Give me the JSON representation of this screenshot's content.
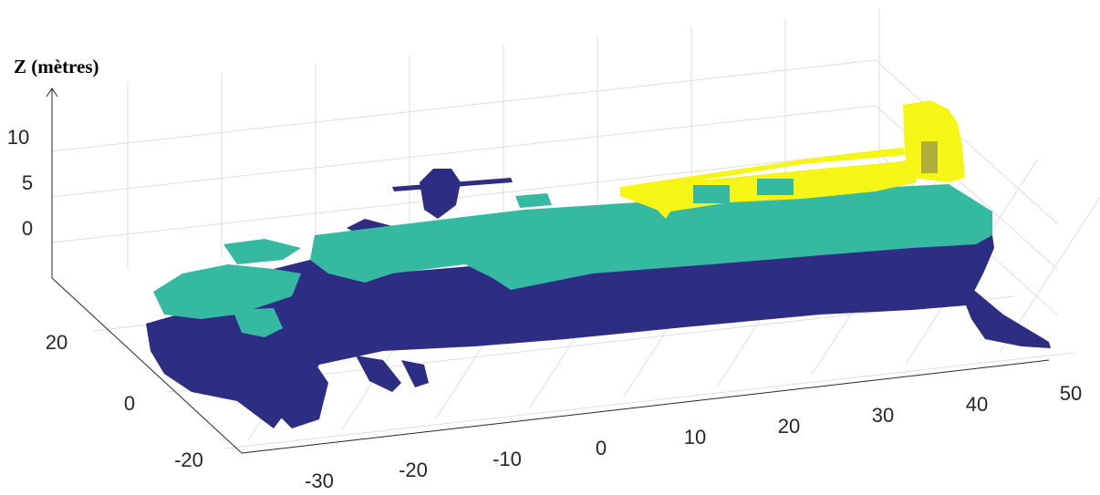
{
  "chart_data": {
    "type": "scatter",
    "projection": "3d-point-cloud",
    "zlabel": "Z (mètres)",
    "xlabel": "",
    "ylabel": "",
    "x_ticks": [
      "-30",
      "-20",
      "-10",
      "0",
      "10",
      "20",
      "30",
      "40",
      "50"
    ],
    "y_ticks": [
      "-20",
      "0",
      "20"
    ],
    "z_ticks": [
      "0",
      "5",
      "10"
    ],
    "xlim": [
      -35,
      50
    ],
    "ylim": [
      -25,
      30
    ],
    "zlim": [
      -5,
      12
    ],
    "grid": true,
    "series": [
      {
        "color": "#2e2d84",
        "z_range": [
          -10,
          2
        ]
      },
      {
        "color": "#35b9a1",
        "z_range": [
          0,
          4
        ]
      },
      {
        "color": "#f5f516",
        "z_range": [
          4,
          12
        ]
      }
    ]
  }
}
